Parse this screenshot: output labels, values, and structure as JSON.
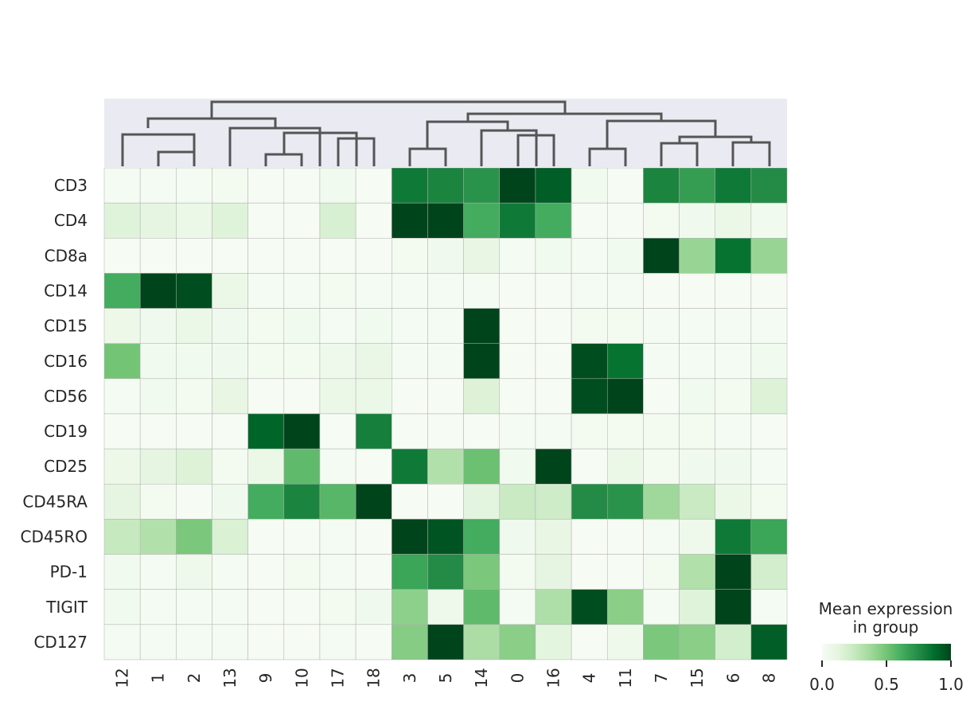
{
  "chart_data": {
    "type": "heatmap",
    "title": "",
    "xlabel": "",
    "ylabel": "",
    "columns": [
      "12",
      "1",
      "2",
      "13",
      "9",
      "10",
      "17",
      "18",
      "3",
      "5",
      "14",
      "0",
      "16",
      "4",
      "11",
      "7",
      "15",
      "6",
      "8"
    ],
    "rows": [
      "CD3",
      "CD4",
      "CD8a",
      "CD14",
      "CD15",
      "CD16",
      "CD56",
      "CD19",
      "CD25",
      "CD45RA",
      "CD45RO",
      "PD-1",
      "TIGIT",
      "CD127"
    ],
    "values": [
      [
        0.02,
        0.02,
        0.02,
        0.03,
        0.01,
        0.01,
        0.04,
        0.01,
        0.82,
        0.78,
        0.72,
        1.0,
        0.92,
        0.04,
        0.01,
        0.78,
        0.68,
        0.82,
        0.75
      ],
      [
        0.15,
        0.12,
        0.08,
        0.15,
        0.01,
        0.01,
        0.18,
        0.01,
        1.0,
        1.0,
        0.62,
        0.82,
        0.62,
        0.01,
        0.01,
        0.03,
        0.05,
        0.08,
        0.04
      ],
      [
        0.01,
        0.01,
        0.01,
        0.01,
        0.01,
        0.01,
        0.01,
        0.01,
        0.03,
        0.05,
        0.1,
        0.02,
        0.04,
        0.02,
        0.04,
        1.0,
        0.4,
        0.85,
        0.4
      ],
      [
        0.62,
        1.0,
        0.97,
        0.08,
        0.02,
        0.02,
        0.03,
        0.02,
        0.02,
        0.02,
        0.02,
        0.01,
        0.01,
        0.02,
        0.02,
        0.01,
        0.01,
        0.01,
        0.01
      ],
      [
        0.07,
        0.05,
        0.08,
        0.05,
        0.03,
        0.04,
        0.02,
        0.04,
        0.02,
        0.02,
        1.0,
        0.01,
        0.01,
        0.03,
        0.03,
        0.02,
        0.02,
        0.02,
        0.02
      ],
      [
        0.5,
        0.04,
        0.04,
        0.05,
        0.03,
        0.03,
        0.06,
        0.09,
        0.02,
        0.02,
        1.0,
        0.01,
        0.01,
        0.97,
        0.85,
        0.02,
        0.02,
        0.02,
        0.04
      ],
      [
        0.02,
        0.04,
        0.03,
        0.1,
        0.01,
        0.01,
        0.08,
        0.08,
        0.01,
        0.01,
        0.16,
        0.01,
        0.01,
        0.97,
        1.0,
        0.01,
        0.04,
        0.03,
        0.16
      ],
      [
        0.01,
        0.01,
        0.01,
        0.01,
        0.9,
        1.0,
        0.01,
        0.8,
        0.01,
        0.01,
        0.01,
        0.02,
        0.02,
        0.03,
        0.03,
        0.03,
        0.03,
        0.02,
        0.01
      ],
      [
        0.07,
        0.12,
        0.16,
        0.03,
        0.08,
        0.55,
        0.02,
        0.01,
        0.82,
        0.32,
        0.52,
        0.04,
        1.0,
        0.01,
        0.08,
        0.03,
        0.05,
        0.05,
        0.02
      ],
      [
        0.12,
        0.03,
        0.01,
        0.05,
        0.62,
        0.78,
        0.57,
        1.0,
        0.01,
        0.01,
        0.13,
        0.24,
        0.22,
        0.75,
        0.72,
        0.38,
        0.24,
        0.08,
        0.03
      ],
      [
        0.25,
        0.32,
        0.48,
        0.17,
        0.01,
        0.01,
        0.02,
        0.01,
        1.0,
        0.95,
        0.62,
        0.05,
        0.1,
        0.01,
        0.01,
        0.02,
        0.06,
        0.82,
        0.65
      ],
      [
        0.04,
        0.02,
        0.06,
        0.02,
        0.01,
        0.03,
        0.02,
        0.01,
        0.65,
        0.75,
        0.48,
        0.03,
        0.12,
        0.01,
        0.01,
        0.03,
        0.32,
        1.0,
        0.2
      ],
      [
        0.04,
        0.02,
        0.02,
        0.02,
        0.01,
        0.01,
        0.03,
        0.05,
        0.43,
        0.06,
        0.55,
        0.02,
        0.33,
        0.97,
        0.44,
        0.02,
        0.15,
        1.0,
        0.02
      ],
      [
        0.02,
        0.02,
        0.02,
        0.02,
        0.01,
        0.01,
        0.02,
        0.01,
        0.45,
        1.0,
        0.34,
        0.44,
        0.13,
        0.01,
        0.06,
        0.48,
        0.44,
        0.2,
        0.92
      ]
    ],
    "colorbar": {
      "label_line1": "Mean expression",
      "label_line2": "in group",
      "ticks": [
        "0.0",
        "0.5",
        "1.0"
      ],
      "tick_values": [
        0,
        0.5,
        1
      ],
      "cmap": "Greens"
    },
    "dendrogram": "top",
    "grid": true
  }
}
